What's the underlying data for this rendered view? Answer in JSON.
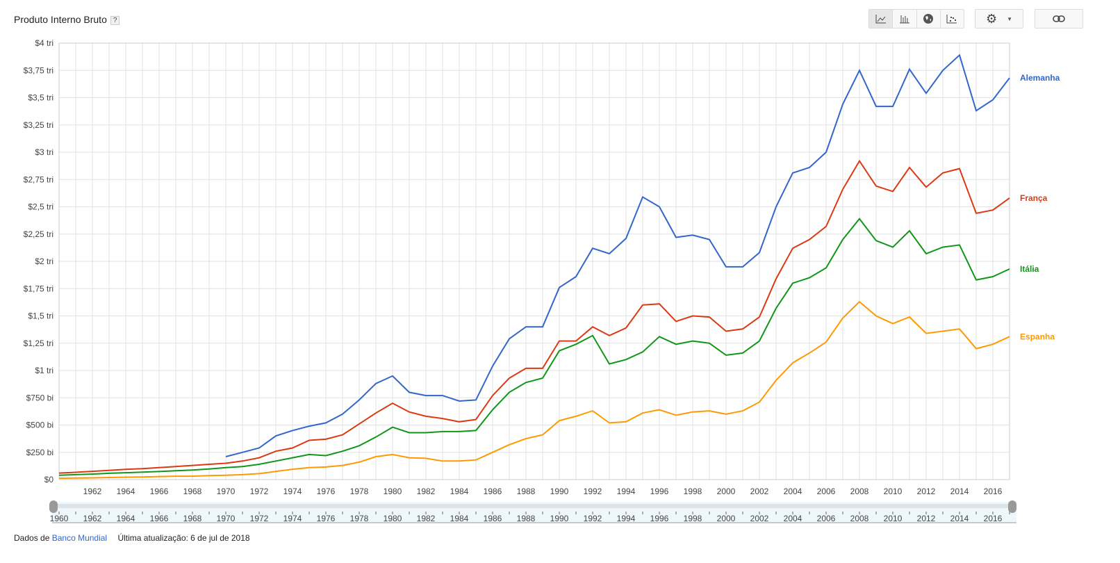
{
  "header": {
    "title": "Produto Interno Bruto",
    "help": "?"
  },
  "toolbar": {
    "views": [
      {
        "icon": "line-chart-icon",
        "selected": true
      },
      {
        "icon": "bar-chart-icon"
      },
      {
        "icon": "globe-map-icon"
      },
      {
        "icon": "scatter-chart-icon"
      }
    ],
    "settings_icon": "gear-icon",
    "dropdown_icon": "caret-down-icon",
    "link_icon": "link-icon"
  },
  "footer": {
    "source_prefix": "Dados de",
    "source_link": "Banco Mundial",
    "updated": "Última atualização: 6 de jul de 2018"
  },
  "chart_data": {
    "type": "line",
    "x_start": 1960,
    "x_end": 2017,
    "xlim": [
      1960,
      2017
    ],
    "ylim": [
      0,
      4
    ],
    "y_unit": "trillion USD",
    "y_ticks": [
      {
        "v": 0,
        "label": "$0"
      },
      {
        "v": 0.25,
        "label": "$250 bi"
      },
      {
        "v": 0.5,
        "label": "$500 bi"
      },
      {
        "v": 0.75,
        "label": "$750 bi"
      },
      {
        "v": 1,
        "label": "$1 tri"
      },
      {
        "v": 1.25,
        "label": "$1,25 tri"
      },
      {
        "v": 1.5,
        "label": "$1,5 tri"
      },
      {
        "v": 1.75,
        "label": "$1,75 tri"
      },
      {
        "v": 2,
        "label": "$2 tri"
      },
      {
        "v": 2.25,
        "label": "$2,25 tri"
      },
      {
        "v": 2.5,
        "label": "$2,5 tri"
      },
      {
        "v": 2.75,
        "label": "$2,75 tri"
      },
      {
        "v": 3,
        "label": "$3 tri"
      },
      {
        "v": 3.25,
        "label": "$3,25 tri"
      },
      {
        "v": 3.5,
        "label": "$3,5 tri"
      },
      {
        "v": 3.75,
        "label": "$3,75 tri"
      },
      {
        "v": 4,
        "label": "$4 tri"
      }
    ],
    "x_tick_labels": [
      "1962",
      "1964",
      "1966",
      "1968",
      "1970",
      "1972",
      "1974",
      "1976",
      "1978",
      "1980",
      "1982",
      "1984",
      "1986",
      "1988",
      "1990",
      "1992",
      "1994",
      "1996",
      "1998",
      "2000",
      "2002",
      "2004",
      "2006",
      "2008",
      "2010",
      "2012",
      "2014",
      "2016"
    ],
    "timeline_labels": [
      "1960",
      "1962",
      "1964",
      "1966",
      "1968",
      "1970",
      "1972",
      "1974",
      "1976",
      "1978",
      "1980",
      "1982",
      "1984",
      "1986",
      "1988",
      "1990",
      "1992",
      "1994",
      "1996",
      "1998",
      "2000",
      "2002",
      "2004",
      "2006",
      "2008",
      "2010",
      "2012",
      "2014",
      "2016"
    ],
    "grid": true,
    "legend": "inline-right",
    "series": [
      {
        "name": "Alemanha",
        "color": "#3366cc",
        "start": 1970,
        "values": [
          0.21,
          0.25,
          0.29,
          0.4,
          0.45,
          0.49,
          0.52,
          0.6,
          0.73,
          0.88,
          0.95,
          0.8,
          0.77,
          0.77,
          0.72,
          0.73,
          1.04,
          1.29,
          1.4,
          1.4,
          1.76,
          1.86,
          2.12,
          2.07,
          2.21,
          2.59,
          2.5,
          2.22,
          2.24,
          2.2,
          1.95,
          1.95,
          2.08,
          2.5,
          2.81,
          2.86,
          3.0,
          3.44,
          3.75,
          3.42,
          3.42,
          3.76,
          3.54,
          3.75,
          3.89,
          3.38,
          3.48,
          3.68
        ]
      },
      {
        "name": "França",
        "color": "#dc3912",
        "start": 1960,
        "values": [
          0.06,
          0.067,
          0.076,
          0.085,
          0.094,
          0.1,
          0.11,
          0.12,
          0.13,
          0.14,
          0.15,
          0.17,
          0.2,
          0.26,
          0.29,
          0.36,
          0.37,
          0.41,
          0.51,
          0.61,
          0.7,
          0.62,
          0.58,
          0.56,
          0.53,
          0.55,
          0.77,
          0.93,
          1.02,
          1.02,
          1.27,
          1.27,
          1.4,
          1.32,
          1.39,
          1.6,
          1.61,
          1.45,
          1.5,
          1.49,
          1.36,
          1.38,
          1.49,
          1.84,
          2.12,
          2.2,
          2.32,
          2.66,
          2.92,
          2.69,
          2.64,
          2.86,
          2.68,
          2.81,
          2.85,
          2.44,
          2.47,
          2.58
        ]
      },
      {
        "name": "Itália",
        "color": "#109618",
        "start": 1960,
        "values": [
          0.04,
          0.045,
          0.05,
          0.058,
          0.063,
          0.068,
          0.074,
          0.081,
          0.088,
          0.097,
          0.11,
          0.12,
          0.14,
          0.17,
          0.2,
          0.23,
          0.22,
          0.26,
          0.31,
          0.39,
          0.48,
          0.43,
          0.43,
          0.44,
          0.44,
          0.45,
          0.64,
          0.8,
          0.89,
          0.93,
          1.18,
          1.24,
          1.32,
          1.06,
          1.1,
          1.17,
          1.31,
          1.24,
          1.27,
          1.25,
          1.14,
          1.16,
          1.27,
          1.57,
          1.8,
          1.85,
          1.94,
          2.2,
          2.39,
          2.19,
          2.13,
          2.28,
          2.07,
          2.13,
          2.15,
          1.83,
          1.86,
          1.93
        ]
      },
      {
        "name": "Espanha",
        "color": "#ff9900",
        "start": 1960,
        "values": [
          0.012,
          0.014,
          0.016,
          0.019,
          0.022,
          0.024,
          0.028,
          0.031,
          0.031,
          0.036,
          0.04,
          0.045,
          0.055,
          0.075,
          0.095,
          0.11,
          0.115,
          0.13,
          0.16,
          0.21,
          0.23,
          0.2,
          0.195,
          0.17,
          0.17,
          0.18,
          0.25,
          0.32,
          0.375,
          0.41,
          0.54,
          0.58,
          0.63,
          0.52,
          0.53,
          0.61,
          0.64,
          0.59,
          0.62,
          0.63,
          0.6,
          0.63,
          0.71,
          0.91,
          1.07,
          1.16,
          1.26,
          1.48,
          1.63,
          1.5,
          1.43,
          1.49,
          1.34,
          1.36,
          1.38,
          1.2,
          1.24,
          1.31
        ]
      }
    ]
  }
}
